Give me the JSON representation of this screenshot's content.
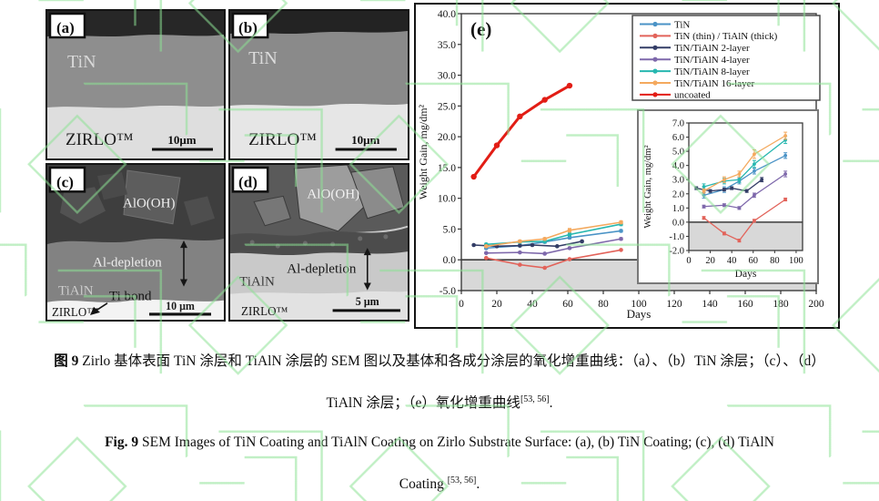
{
  "figure": {
    "panels": {
      "a": {
        "label": "(a)",
        "coating": "TiN",
        "substrate": "ZIRLO™",
        "scale_bar": "10μm"
      },
      "b": {
        "label": "(b)",
        "coating": "TiN",
        "substrate": "ZIRLO™",
        "scale_bar": "10μm"
      },
      "c": {
        "label": "(c)",
        "oxide": "AlO(OH)",
        "depletion_zone": "Al-depletion",
        "coating": "TiAlN",
        "bond_layer": "Ti bond",
        "substrate": "ZIRLO™",
        "scale_bar": "10 μm"
      },
      "d": {
        "label": "(d)",
        "oxide": "AlO(OH)",
        "depletion_zone": "Al-depletion",
        "coating": "TiAlN",
        "substrate": "ZIRLO™",
        "scale_bar": "5 μm"
      }
    }
  },
  "chart_data": {
    "type": "line",
    "panel_label": "(e)",
    "xlabel": "Days",
    "ylabel": "Weight Gain, mg/dm²",
    "xlim": [
      0,
      200
    ],
    "ylim": [
      -5,
      40
    ],
    "xticks": [
      0,
      20,
      40,
      60,
      80,
      100,
      120,
      140,
      160,
      180,
      200
    ],
    "yticks": [
      -5,
      0,
      5,
      10,
      15,
      20,
      25,
      30,
      35,
      40
    ],
    "shaded_below": 0,
    "shade_color": "#d8d8d8",
    "legend_position": "top-right",
    "series": [
      {
        "name": "TiN",
        "color": "#4a93c6",
        "x": [
          14,
          33,
          47,
          61,
          90
        ],
        "y": [
          1.9,
          2.3,
          2.9,
          3.6,
          4.7
        ],
        "err": [
          0.2,
          0.2,
          0.2,
          0.2,
          0.2
        ],
        "in_inset": true
      },
      {
        "name": "TiN (thin) / TiAlN (thick)",
        "color": "#e2635a",
        "x": [
          14,
          33,
          47,
          61,
          90
        ],
        "y": [
          0.3,
          -0.8,
          -1.3,
          0.1,
          1.6
        ],
        "err": [
          0.1,
          0.1,
          0.1,
          0.1,
          0.1
        ],
        "in_inset": true
      },
      {
        "name": "TiN/TiAlN 2-layer",
        "color": "#333d66",
        "x": [
          7,
          20,
          33,
          40,
          54,
          68
        ],
        "y": [
          2.4,
          2.2,
          2.3,
          2.4,
          2.2,
          3.0
        ],
        "err": [
          0.1,
          0.1,
          0.1,
          0.1,
          0.1,
          0.15
        ],
        "in_inset": true
      },
      {
        "name": "TiN/TiAlN 4-layer",
        "color": "#7e68ab",
        "x": [
          14,
          33,
          47,
          61,
          90
        ],
        "y": [
          1.1,
          1.2,
          1.0,
          1.9,
          3.4
        ],
        "err": [
          0.1,
          0.1,
          0.1,
          0.15,
          0.2
        ],
        "in_inset": true
      },
      {
        "name": "TiN/TiAlN 8-layer",
        "color": "#27b7b0",
        "x": [
          14,
          33,
          47,
          61,
          90
        ],
        "y": [
          2.5,
          2.9,
          3.0,
          4.1,
          5.8
        ],
        "err": [
          0.2,
          0.2,
          0.2,
          0.25,
          0.25
        ],
        "in_inset": true
      },
      {
        "name": "TiN/TiAlN 16-layer",
        "color": "#f4a95e",
        "x": [
          14,
          33,
          47,
          61,
          90
        ],
        "y": [
          2.2,
          3.0,
          3.4,
          4.8,
          6.1
        ],
        "err": [
          0.15,
          0.2,
          0.2,
          0.3,
          0.25
        ],
        "in_inset": true
      },
      {
        "name": "uncoated",
        "color": "#e21d15",
        "x": [
          7,
          20,
          33,
          47,
          61
        ],
        "y": [
          13.5,
          18.6,
          23.3,
          26.0,
          28.3
        ],
        "thick": true,
        "in_inset": false
      }
    ],
    "inset": {
      "xlabel": "Days",
      "ylabel": "Weight Gain, mg/dm²",
      "xlim": [
        0,
        106
      ],
      "ylim": [
        -2,
        7
      ],
      "xticks": [
        0,
        20,
        40,
        60,
        80,
        100
      ],
      "yticks": [
        -2,
        -1,
        0,
        1,
        2,
        3,
        4,
        5,
        6,
        7
      ],
      "shaded_below": 0
    }
  },
  "captions": {
    "ref": "[53, 56]",
    "period": ".",
    "zh": {
      "fig_no": "图 9",
      "line1_rest": " Zirlo 基体表面 TiN 涂层和 TiAlN 涂层的 SEM 图以及基体和各成分涂层的氧化增重曲线：（a）、（b）TiN 涂层；（c）、（d）",
      "line2": "TiAlN 涂层；（e）氧化增重曲线"
    },
    "en": {
      "fig_no": "Fig. 9",
      "line1_rest": " SEM Images of TiN Coating and TiAlN Coating on Zirlo Substrate Surface: (a), (b) TiN Coating; (c), (d) TiAlN",
      "line2": "Coating "
    }
  }
}
